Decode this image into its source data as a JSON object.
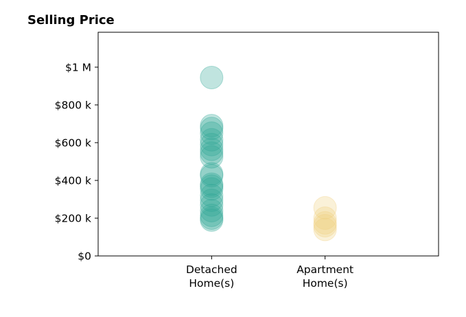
{
  "chart_data": {
    "type": "scatter",
    "title": "Selling Price",
    "xlabel": "",
    "ylabel": "",
    "categories": [
      [
        "Detached",
        "Home(s)"
      ],
      [
        "Apartment",
        "Home(s)"
      ]
    ],
    "y_ticks": [
      0,
      200000,
      400000,
      600000,
      800000,
      1000000
    ],
    "y_tick_labels": [
      "$0",
      "$200 k",
      "$400 k",
      "$600 k",
      "$800 k",
      "$1 M"
    ],
    "ylim": [
      0,
      1185000
    ],
    "xlim": [
      -1,
      2
    ],
    "grid": false,
    "series": [
      {
        "color": "#2fa596",
        "values": [
          945000,
          690000,
          675000,
          650000,
          615000,
          590000,
          565000,
          545000,
          525000,
          435000,
          425000,
          380000,
          370000,
          355000,
          320000,
          295000,
          270000,
          240000,
          215000,
          200000,
          190000
        ]
      },
      {
        "color": "#f0cf7e",
        "values": [
          255000,
          200000,
          175000,
          160000,
          140000
        ]
      }
    ]
  }
}
